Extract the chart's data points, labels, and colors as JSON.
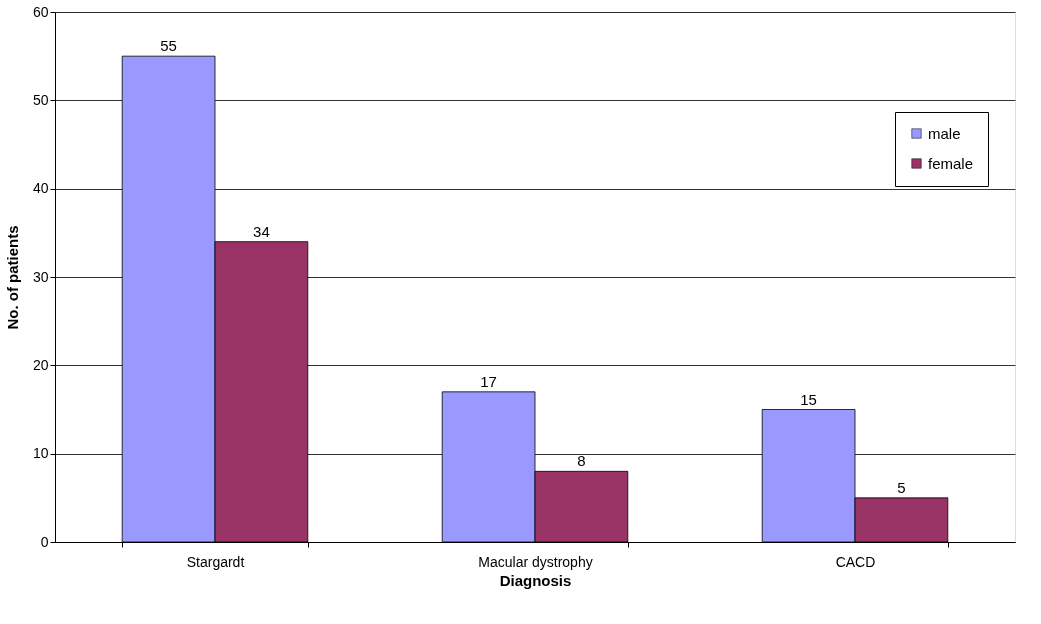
{
  "chart_data": {
    "type": "bar",
    "xlabel": "Diagnosis",
    "ylabel": "No. of patients",
    "categories": [
      "Stargardt",
      "Macular dystrophy",
      "CACD"
    ],
    "series": [
      {
        "name": "male",
        "color": "#9999ff",
        "values": [
          55,
          17,
          15
        ]
      },
      {
        "name": "female",
        "color": "#993366",
        "values": [
          34,
          8,
          5
        ]
      }
    ],
    "ylim": [
      0,
      60
    ],
    "yticks": [
      0,
      10,
      20,
      30,
      40,
      50,
      60
    ],
    "grid": "y",
    "legend": "top right",
    "data_labels": true
  }
}
